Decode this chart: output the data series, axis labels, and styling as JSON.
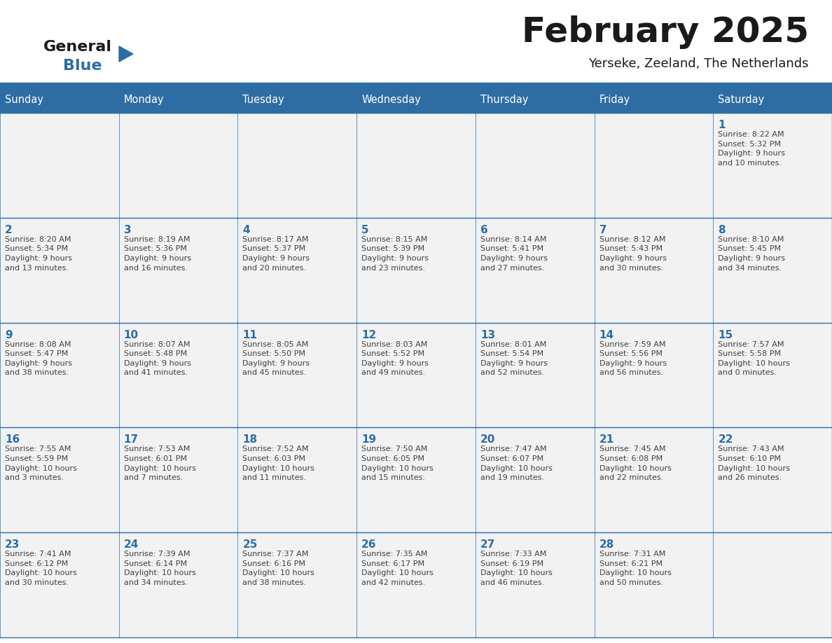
{
  "title": "February 2025",
  "subtitle": "Yerseke, Zeeland, The Netherlands",
  "days_of_week": [
    "Sunday",
    "Monday",
    "Tuesday",
    "Wednesday",
    "Thursday",
    "Friday",
    "Saturday"
  ],
  "header_bg": "#2E6DA4",
  "header_text": "#FFFFFF",
  "cell_bg_light": "#F2F2F2",
  "cell_bg_white": "#FFFFFF",
  "cell_border": "#2E6DA4",
  "day_number_color": "#2E6DA4",
  "info_text_color": "#404040",
  "title_color": "#1a1a1a",
  "logo_general_color": "#1a1a1a",
  "logo_blue_color": "#2E6DA4",
  "calendar_data": [
    [
      {
        "day": null,
        "info": ""
      },
      {
        "day": null,
        "info": ""
      },
      {
        "day": null,
        "info": ""
      },
      {
        "day": null,
        "info": ""
      },
      {
        "day": null,
        "info": ""
      },
      {
        "day": null,
        "info": ""
      },
      {
        "day": 1,
        "info": "Sunrise: 8:22 AM\nSunset: 5:32 PM\nDaylight: 9 hours\nand 10 minutes."
      }
    ],
    [
      {
        "day": 2,
        "info": "Sunrise: 8:20 AM\nSunset: 5:34 PM\nDaylight: 9 hours\nand 13 minutes."
      },
      {
        "day": 3,
        "info": "Sunrise: 8:19 AM\nSunset: 5:36 PM\nDaylight: 9 hours\nand 16 minutes."
      },
      {
        "day": 4,
        "info": "Sunrise: 8:17 AM\nSunset: 5:37 PM\nDaylight: 9 hours\nand 20 minutes."
      },
      {
        "day": 5,
        "info": "Sunrise: 8:15 AM\nSunset: 5:39 PM\nDaylight: 9 hours\nand 23 minutes."
      },
      {
        "day": 6,
        "info": "Sunrise: 8:14 AM\nSunset: 5:41 PM\nDaylight: 9 hours\nand 27 minutes."
      },
      {
        "day": 7,
        "info": "Sunrise: 8:12 AM\nSunset: 5:43 PM\nDaylight: 9 hours\nand 30 minutes."
      },
      {
        "day": 8,
        "info": "Sunrise: 8:10 AM\nSunset: 5:45 PM\nDaylight: 9 hours\nand 34 minutes."
      }
    ],
    [
      {
        "day": 9,
        "info": "Sunrise: 8:08 AM\nSunset: 5:47 PM\nDaylight: 9 hours\nand 38 minutes."
      },
      {
        "day": 10,
        "info": "Sunrise: 8:07 AM\nSunset: 5:48 PM\nDaylight: 9 hours\nand 41 minutes."
      },
      {
        "day": 11,
        "info": "Sunrise: 8:05 AM\nSunset: 5:50 PM\nDaylight: 9 hours\nand 45 minutes."
      },
      {
        "day": 12,
        "info": "Sunrise: 8:03 AM\nSunset: 5:52 PM\nDaylight: 9 hours\nand 49 minutes."
      },
      {
        "day": 13,
        "info": "Sunrise: 8:01 AM\nSunset: 5:54 PM\nDaylight: 9 hours\nand 52 minutes."
      },
      {
        "day": 14,
        "info": "Sunrise: 7:59 AM\nSunset: 5:56 PM\nDaylight: 9 hours\nand 56 minutes."
      },
      {
        "day": 15,
        "info": "Sunrise: 7:57 AM\nSunset: 5:58 PM\nDaylight: 10 hours\nand 0 minutes."
      }
    ],
    [
      {
        "day": 16,
        "info": "Sunrise: 7:55 AM\nSunset: 5:59 PM\nDaylight: 10 hours\nand 3 minutes."
      },
      {
        "day": 17,
        "info": "Sunrise: 7:53 AM\nSunset: 6:01 PM\nDaylight: 10 hours\nand 7 minutes."
      },
      {
        "day": 18,
        "info": "Sunrise: 7:52 AM\nSunset: 6:03 PM\nDaylight: 10 hours\nand 11 minutes."
      },
      {
        "day": 19,
        "info": "Sunrise: 7:50 AM\nSunset: 6:05 PM\nDaylight: 10 hours\nand 15 minutes."
      },
      {
        "day": 20,
        "info": "Sunrise: 7:47 AM\nSunset: 6:07 PM\nDaylight: 10 hours\nand 19 minutes."
      },
      {
        "day": 21,
        "info": "Sunrise: 7:45 AM\nSunset: 6:08 PM\nDaylight: 10 hours\nand 22 minutes."
      },
      {
        "day": 22,
        "info": "Sunrise: 7:43 AM\nSunset: 6:10 PM\nDaylight: 10 hours\nand 26 minutes."
      }
    ],
    [
      {
        "day": 23,
        "info": "Sunrise: 7:41 AM\nSunset: 6:12 PM\nDaylight: 10 hours\nand 30 minutes."
      },
      {
        "day": 24,
        "info": "Sunrise: 7:39 AM\nSunset: 6:14 PM\nDaylight: 10 hours\nand 34 minutes."
      },
      {
        "day": 25,
        "info": "Sunrise: 7:37 AM\nSunset: 6:16 PM\nDaylight: 10 hours\nand 38 minutes."
      },
      {
        "day": 26,
        "info": "Sunrise: 7:35 AM\nSunset: 6:17 PM\nDaylight: 10 hours\nand 42 minutes."
      },
      {
        "day": 27,
        "info": "Sunrise: 7:33 AM\nSunset: 6:19 PM\nDaylight: 10 hours\nand 46 minutes."
      },
      {
        "day": 28,
        "info": "Sunrise: 7:31 AM\nSunset: 6:21 PM\nDaylight: 10 hours\nand 50 minutes."
      },
      {
        "day": null,
        "info": ""
      }
    ]
  ]
}
